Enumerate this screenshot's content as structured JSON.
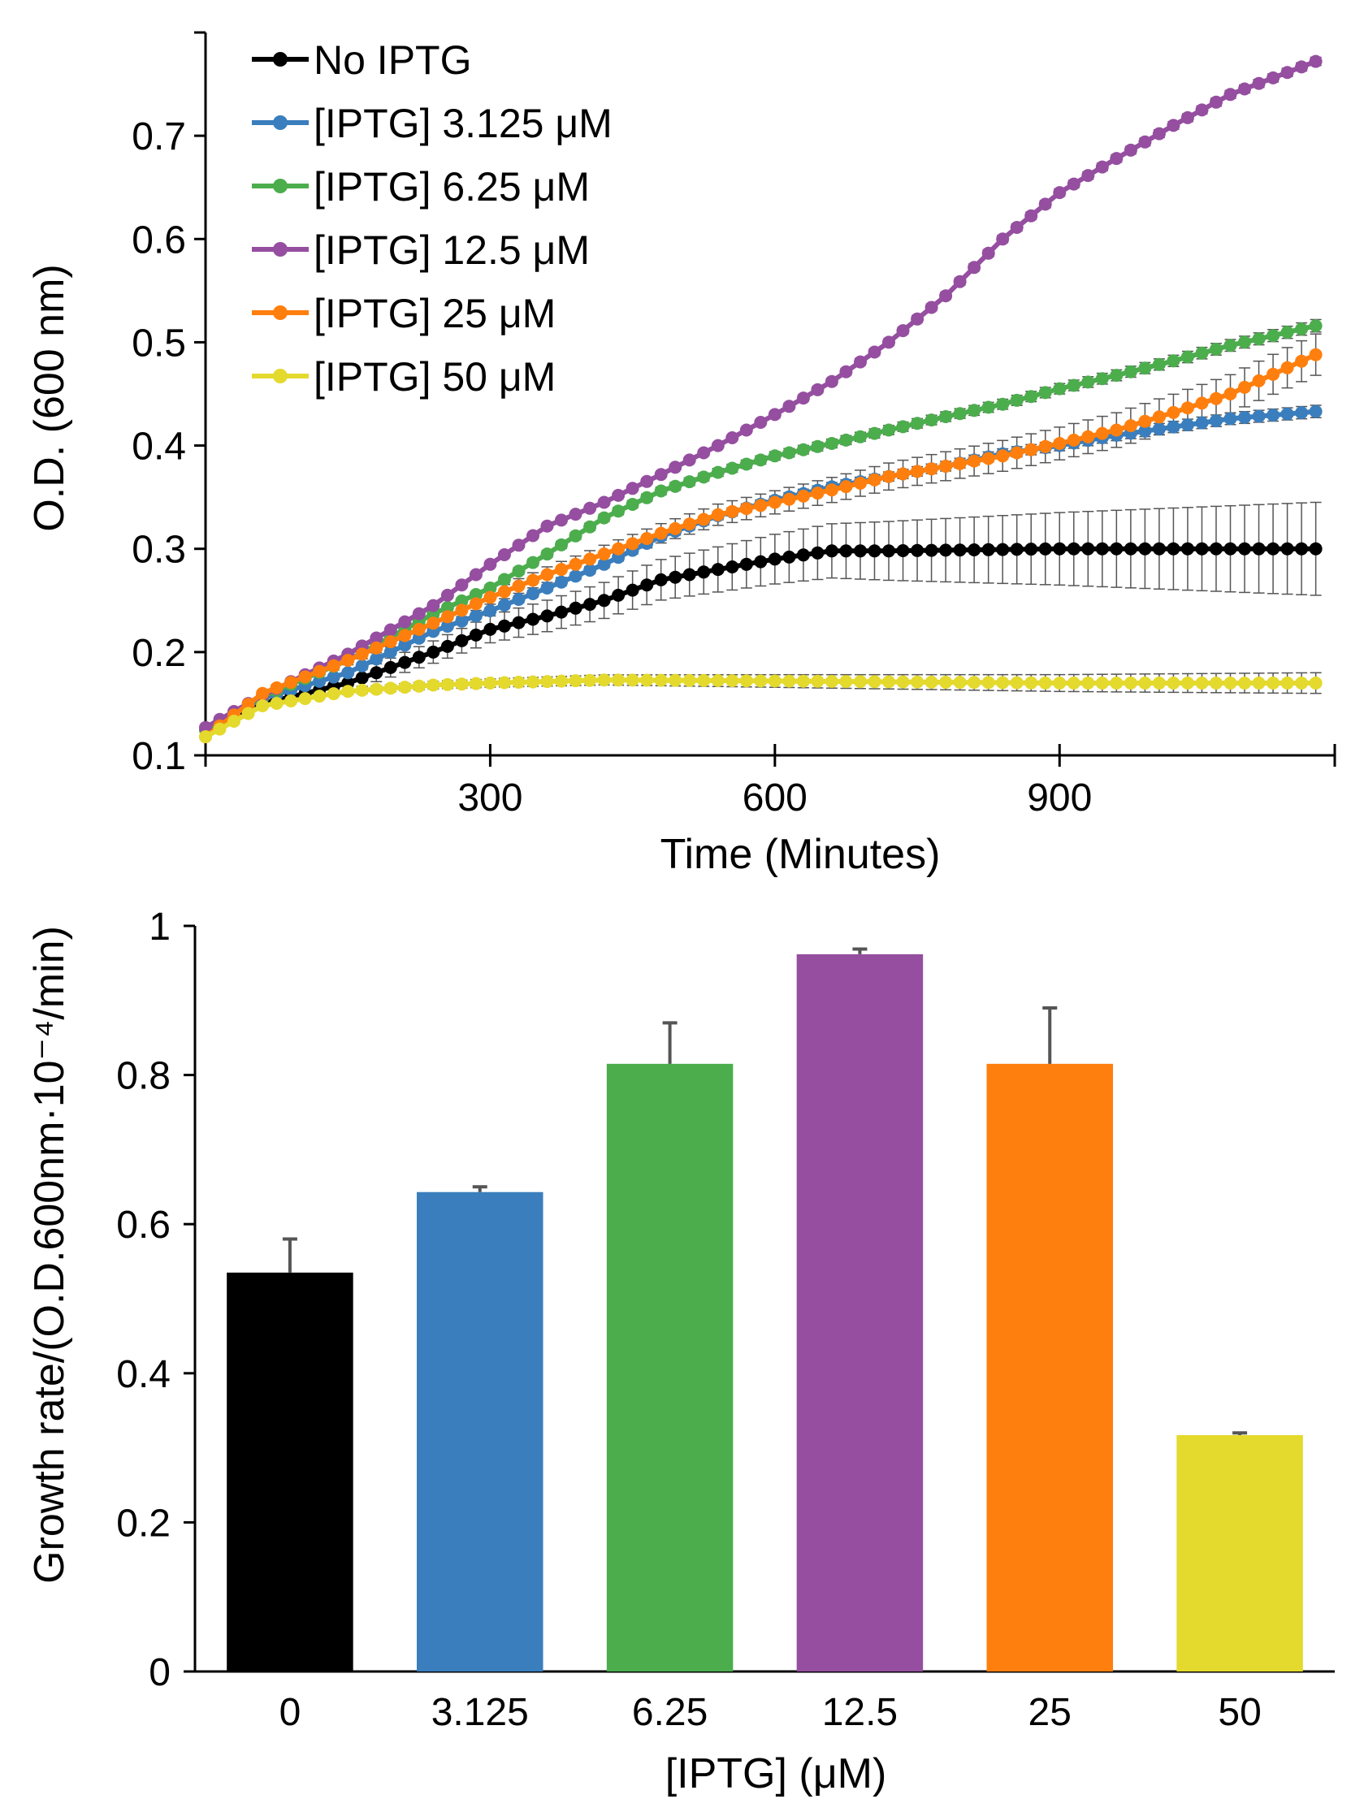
{
  "colors": {
    "black": "#000000",
    "blue": "#3a7ebd",
    "green": "#4cad4d",
    "purple": "#954ea0",
    "orange": "#ff7f0e",
    "yellow": "#e4d92d",
    "error_bar": "#555555"
  },
  "chart_data": [
    {
      "type": "line",
      "xlabel": "Time (Minutes)",
      "ylabel": "O.D. (600 nm)",
      "xlim": [
        0,
        1190
      ],
      "ylim": [
        0.1,
        0.8
      ],
      "x_ticks": [
        "300",
        "600",
        "900"
      ],
      "y_ticks": [
        "0.1",
        "0.2",
        "0.3",
        "0.4",
        "0.5",
        "0.6",
        "0.7"
      ],
      "grid": false,
      "legend_position": "top-left",
      "x_interval_minutes": 15,
      "series": [
        {
          "name": "No IPTG",
          "color": "#000000",
          "knots": [
            [
              0,
              0.125
            ],
            [
              60,
              0.15
            ],
            [
              150,
              0.17
            ],
            [
              240,
              0.2
            ],
            [
              300,
              0.222
            ],
            [
              360,
              0.235
            ],
            [
              420,
              0.25
            ],
            [
              480,
              0.27
            ],
            [
              540,
              0.28
            ],
            [
              600,
              0.29
            ],
            [
              660,
              0.298
            ],
            [
              720,
              0.298
            ],
            [
              900,
              0.3
            ],
            [
              1170,
              0.3
            ]
          ],
          "error_start": [
            0.002,
            0.0
          ],
          "error_end": [
            0.045,
            0.045
          ]
        },
        {
          "name": "[IPTG] 3.125 μM",
          "color": "#3a7ebd",
          "knots": [
            [
              0,
              0.125
            ],
            [
              60,
              0.155
            ],
            [
              150,
              0.18
            ],
            [
              240,
              0.22
            ],
            [
              300,
              0.24
            ],
            [
              360,
              0.262
            ],
            [
              420,
              0.285
            ],
            [
              480,
              0.312
            ],
            [
              540,
              0.332
            ],
            [
              600,
              0.347
            ],
            [
              660,
              0.36
            ],
            [
              720,
              0.37
            ],
            [
              780,
              0.38
            ],
            [
              840,
              0.392
            ],
            [
              900,
              0.4
            ],
            [
              960,
              0.41
            ],
            [
              1020,
              0.418
            ],
            [
              1080,
              0.426
            ],
            [
              1170,
              0.433
            ]
          ],
          "error_start": [
            0.002,
            0.0
          ],
          "error_end": [
            0.006,
            0.006
          ]
        },
        {
          "name": "[IPTG] 6.25 μM",
          "color": "#4cad4d",
          "knots": [
            [
              0,
              0.125
            ],
            [
              60,
              0.157
            ],
            [
              150,
              0.192
            ],
            [
              240,
              0.237
            ],
            [
              300,
              0.262
            ],
            [
              360,
              0.295
            ],
            [
              420,
              0.33
            ],
            [
              480,
              0.356
            ],
            [
              540,
              0.374
            ],
            [
              600,
              0.39
            ],
            [
              660,
              0.402
            ],
            [
              720,
              0.415
            ],
            [
              780,
              0.428
            ],
            [
              840,
              0.44
            ],
            [
              900,
              0.455
            ],
            [
              960,
              0.468
            ],
            [
              1020,
              0.482
            ],
            [
              1080,
              0.497
            ],
            [
              1170,
              0.516
            ]
          ],
          "error_start": [
            0.002,
            0.0
          ],
          "error_end": [
            0.006,
            0.006
          ]
        },
        {
          "name": "[IPTG] 12.5 μM",
          "color": "#954ea0",
          "knots": [
            [
              0,
              0.127
            ],
            [
              60,
              0.158
            ],
            [
              150,
              0.198
            ],
            [
              240,
              0.245
            ],
            [
              300,
              0.285
            ],
            [
              360,
              0.322
            ],
            [
              420,
              0.345
            ],
            [
              480,
              0.372
            ],
            [
              540,
              0.4
            ],
            [
              600,
              0.43
            ],
            [
              660,
              0.462
            ],
            [
              720,
              0.5
            ],
            [
              780,
              0.545
            ],
            [
              840,
              0.6
            ],
            [
              900,
              0.645
            ],
            [
              960,
              0.678
            ],
            [
              1020,
              0.71
            ],
            [
              1080,
              0.74
            ],
            [
              1170,
              0.772
            ]
          ],
          "error_start": [
            0.002,
            0.0
          ],
          "error_end": [
            0.004,
            0.004
          ]
        },
        {
          "name": "[IPTG] 25 μM",
          "color": "#ff7f0e",
          "knots": [
            [
              0,
              0.118
            ],
            [
              60,
              0.16
            ],
            [
              150,
              0.192
            ],
            [
              240,
              0.228
            ],
            [
              300,
              0.253
            ],
            [
              360,
              0.275
            ],
            [
              420,
              0.295
            ],
            [
              480,
              0.315
            ],
            [
              540,
              0.333
            ],
            [
              600,
              0.345
            ],
            [
              660,
              0.357
            ],
            [
              720,
              0.37
            ],
            [
              780,
              0.38
            ],
            [
              840,
              0.39
            ],
            [
              900,
              0.402
            ],
            [
              960,
              0.415
            ],
            [
              1020,
              0.432
            ],
            [
              1080,
              0.45
            ],
            [
              1170,
              0.488
            ]
          ],
          "error_start": [
            0.002,
            0.0
          ],
          "error_end": [
            0.02,
            0.02
          ]
        },
        {
          "name": "[IPTG] 50 μM",
          "color": "#e4d92d",
          "knots": [
            [
              0,
              0.118
            ],
            [
              60,
              0.148
            ],
            [
              150,
              0.162
            ],
            [
              240,
              0.168
            ],
            [
              300,
              0.17
            ],
            [
              420,
              0.173
            ],
            [
              600,
              0.172
            ],
            [
              900,
              0.17
            ],
            [
              1170,
              0.17
            ]
          ],
          "error_start": [
            0.002,
            0.0
          ],
          "error_end": [
            0.01,
            0.01
          ]
        }
      ]
    },
    {
      "type": "bar",
      "xlabel": "[IPTG] (μM)",
      "ylabel": "Growth rate/(O.D.600nm·10⁻⁴/min)",
      "ylim": [
        0,
        1
      ],
      "y_ticks": [
        "0",
        "0.2",
        "0.4",
        "0.6",
        "0.8",
        "1"
      ],
      "grid": false,
      "categories": [
        "0",
        "3.125",
        "6.25",
        "12.5",
        "25",
        "50"
      ],
      "values": [
        0.535,
        0.643,
        0.815,
        0.962,
        0.815,
        0.317
      ],
      "errors": [
        0.045,
        0.007,
        0.055,
        0.007,
        0.075,
        0.003
      ],
      "colors": [
        "#000000",
        "#3a7ebd",
        "#4cad4d",
        "#954ea0",
        "#ff7f0e",
        "#e4d92d"
      ]
    }
  ]
}
